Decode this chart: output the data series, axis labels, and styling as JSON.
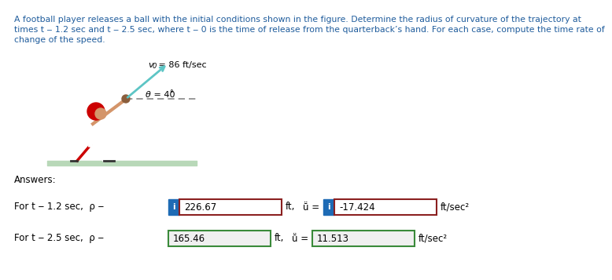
{
  "title_line1": "A football player releases a ball with the initial conditions shown in the figure. Determine the radius of curvature of the trajectory at",
  "title_line2": "times t ‒ 1.2 sec and t ‒ 2.5 sec, where t ‒ 0 is the time of release from the quarterback’s hand. For each case, compute the time rate of",
  "title_line3": "change of the speed.",
  "answers_label": "Answers:",
  "row1_label": "For t ‒ 1.2 sec,  ρ ‒",
  "row1_val1": "226.67",
  "row1_unit1": "ft,",
  "row1_vdot": "ṻ =",
  "row1_val2": "-17.424",
  "row1_unit2": "ft/sec²",
  "row2_label": "For t ‒ 2.5 sec,  ρ ‒",
  "row2_val1": "165.46",
  "row2_unit1": "ft,",
  "row2_vdot": "ṻ =",
  "row2_val2": "11.513",
  "row2_unit2": "ft/sec²",
  "fig_v0_italic": "v",
  "fig_v0_sub": "0",
  "fig_v0_rest": " = 86 ft/sec",
  "fig_theta_italic": "θ",
  "fig_theta_rest": " = 40",
  "fig_theta_deg": "°",
  "bg_color": "#ffffff",
  "title_color": "#1F5C9C",
  "text_color": "#000000",
  "box_fill": "#ffffff",
  "box_fill_gray": "#f0f0f0",
  "box_edge_red": "#8B2020",
  "box_edge_green": "#3A8A3A",
  "icon_bg": "#1E6BB5",
  "icon_text": "i",
  "icon_color": "#ffffff",
  "ground_color": "#B8D8B8",
  "arrow_color": "#5DC5C5",
  "dash_color": "#888888"
}
